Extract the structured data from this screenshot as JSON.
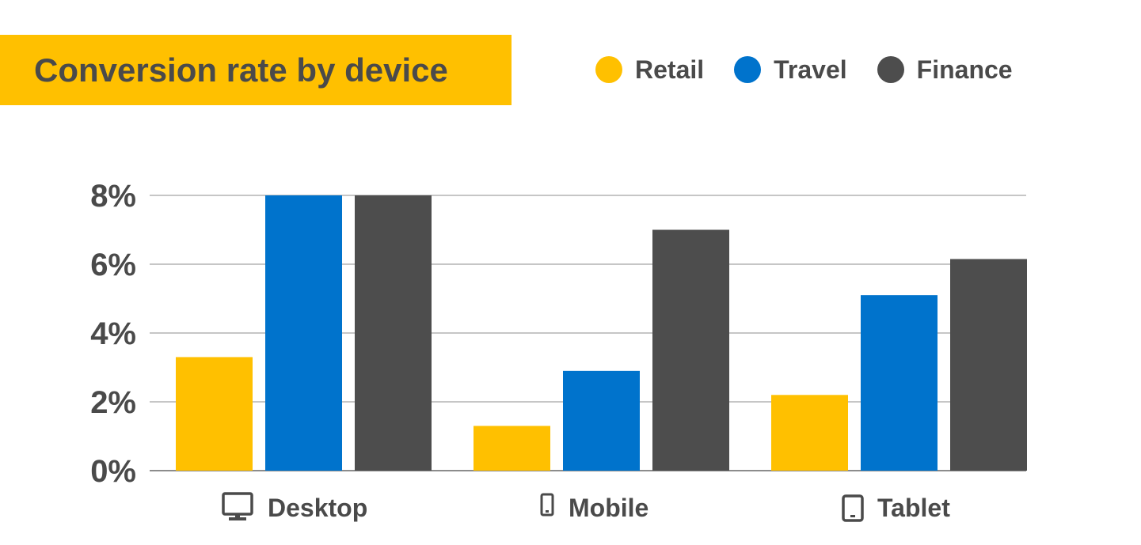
{
  "chart_data": {
    "type": "bar",
    "title": "Conversion rate by device",
    "categories": [
      "Desktop",
      "Mobile",
      "Tablet"
    ],
    "category_icons": [
      "monitor-icon",
      "phone-icon",
      "tablet-icon"
    ],
    "series": [
      {
        "name": "Retail",
        "color": "#FFC000",
        "values": [
          3.3,
          1.3,
          2.2
        ]
      },
      {
        "name": "Travel",
        "color": "#0073CC",
        "values": [
          8.0,
          2.9,
          5.1
        ]
      },
      {
        "name": "Finance",
        "color": "#4D4D4D",
        "values": [
          8.0,
          7.0,
          6.15
        ]
      }
    ],
    "yticks": [
      "0%",
      "2%",
      "4%",
      "6%",
      "8%"
    ],
    "ytick_values": [
      0,
      2,
      4,
      6,
      8
    ],
    "ylim": [
      0,
      8
    ],
    "xlabel": "",
    "ylabel": "",
    "grid": true,
    "legend_position": "top-right"
  }
}
